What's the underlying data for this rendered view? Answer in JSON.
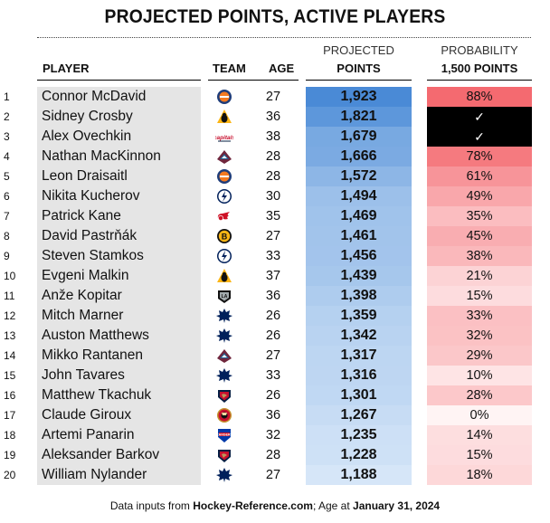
{
  "title": "PROJECTED POINTS, ACTIVE PLAYERS",
  "headers": {
    "player": "PLAYER",
    "team": "TEAM",
    "age": "AGE",
    "projected_top": "PROJECTED",
    "projected_bottom": "POINTS",
    "probability_top": "PROBABILITY",
    "probability_bottom": "1,500 POINTS"
  },
  "chart_data": {
    "type": "table",
    "title": "PROJECTED POINTS, ACTIVE PLAYERS",
    "columns": [
      "",
      "PLAYER",
      "TEAM",
      "AGE",
      "PROJECTED POINTS",
      "PROBABILITY 1,500 POINTS"
    ],
    "rows": [
      {
        "rank": "1",
        "player": "Connor McDavid",
        "team": "Edmonton Oilers logo",
        "age": "27",
        "points": "1,923",
        "prob": "88%",
        "points_value": 1923,
        "prob_value": 88
      },
      {
        "rank": "2",
        "player": "Sidney Crosby",
        "team": "Pittsburgh Penguins logo",
        "age": "36",
        "points": "1,821",
        "prob": "✓",
        "points_value": 1821,
        "prob_value": null
      },
      {
        "rank": "3",
        "player": "Alex Ovechkin",
        "team": "Washington Capitals logo",
        "age": "38",
        "points": "1,679",
        "prob": "✓",
        "points_value": 1679,
        "prob_value": null
      },
      {
        "rank": "4",
        "player": "Nathan MacKinnon",
        "team": "Colorado Avalanche logo",
        "age": "28",
        "points": "1,666",
        "prob": "78%",
        "points_value": 1666,
        "prob_value": 78
      },
      {
        "rank": "5",
        "player": "Leon Draisaitl",
        "team": "Edmonton Oilers logo",
        "age": "28",
        "points": "1,572",
        "prob": "61%",
        "points_value": 1572,
        "prob_value": 61
      },
      {
        "rank": "6",
        "player": "Nikita Kucherov",
        "team": "Tampa Bay Lightning logo",
        "age": "30",
        "points": "1,494",
        "prob": "49%",
        "points_value": 1494,
        "prob_value": 49
      },
      {
        "rank": "7",
        "player": "Patrick Kane",
        "team": "Detroit Red Wings logo",
        "age": "35",
        "points": "1,469",
        "prob": "35%",
        "points_value": 1469,
        "prob_value": 35
      },
      {
        "rank": "8",
        "player": "David Pastrňák",
        "team": "Boston Bruins logo",
        "age": "27",
        "points": "1,461",
        "prob": "45%",
        "points_value": 1461,
        "prob_value": 45
      },
      {
        "rank": "9",
        "player": "Steven Stamkos",
        "team": "Tampa Bay Lightning logo",
        "age": "33",
        "points": "1,456",
        "prob": "38%",
        "points_value": 1456,
        "prob_value": 38
      },
      {
        "rank": "10",
        "player": "Evgeni Malkin",
        "team": "Pittsburgh Penguins logo",
        "age": "37",
        "points": "1,439",
        "prob": "21%",
        "points_value": 1439,
        "prob_value": 21
      },
      {
        "rank": "11",
        "player": "Anže Kopitar",
        "team": "Los Angeles Kings logo",
        "age": "36",
        "points": "1,398",
        "prob": "15%",
        "points_value": 1398,
        "prob_value": 15
      },
      {
        "rank": "12",
        "player": "Mitch Marner",
        "team": "Toronto Maple Leafs logo",
        "age": "26",
        "points": "1,359",
        "prob": "33%",
        "points_value": 1359,
        "prob_value": 33
      },
      {
        "rank": "13",
        "player": "Auston Matthews",
        "team": "Toronto Maple Leafs logo",
        "age": "26",
        "points": "1,342",
        "prob": "32%",
        "points_value": 1342,
        "prob_value": 32
      },
      {
        "rank": "14",
        "player": "Mikko Rantanen",
        "team": "Colorado Avalanche logo",
        "age": "27",
        "points": "1,317",
        "prob": "29%",
        "points_value": 1317,
        "prob_value": 29
      },
      {
        "rank": "15",
        "player": "John Tavares",
        "team": "Toronto Maple Leafs logo",
        "age": "33",
        "points": "1,316",
        "prob": "10%",
        "points_value": 1316,
        "prob_value": 10
      },
      {
        "rank": "16",
        "player": "Matthew Tkachuk",
        "team": "Florida Panthers logo",
        "age": "26",
        "points": "1,301",
        "prob": "28%",
        "points_value": 1301,
        "prob_value": 28
      },
      {
        "rank": "17",
        "player": "Claude Giroux",
        "team": "Ottawa Senators logo",
        "age": "36",
        "points": "1,267",
        "prob": "0%",
        "points_value": 1267,
        "prob_value": 0
      },
      {
        "rank": "18",
        "player": "Artemi Panarin",
        "team": "New York Rangers logo",
        "age": "32",
        "points": "1,235",
        "prob": "14%",
        "points_value": 1235,
        "prob_value": 14
      },
      {
        "rank": "19",
        "player": "Aleksander Barkov",
        "team": "Florida Panthers logo",
        "age": "28",
        "points": "1,228",
        "prob": "15%",
        "points_value": 1228,
        "prob_value": 15
      },
      {
        "rank": "20",
        "player": "William Nylander",
        "team": "Toronto Maple Leafs logo",
        "age": "27",
        "points": "1,188",
        "prob": "18%",
        "points_value": 1188,
        "prob_value": 18
      }
    ]
  },
  "footer": {
    "prefix": "Data inputs from ",
    "source": "Hockey-Reference.com",
    "middle": "; Age at ",
    "date": "January 31, 2024"
  },
  "colors": {
    "points_high": "#4a8ad6",
    "points_low": "#d6e6f8",
    "prob_high": "#f46a70",
    "prob_low": "#fff4f4",
    "check_bg": "#000000"
  }
}
